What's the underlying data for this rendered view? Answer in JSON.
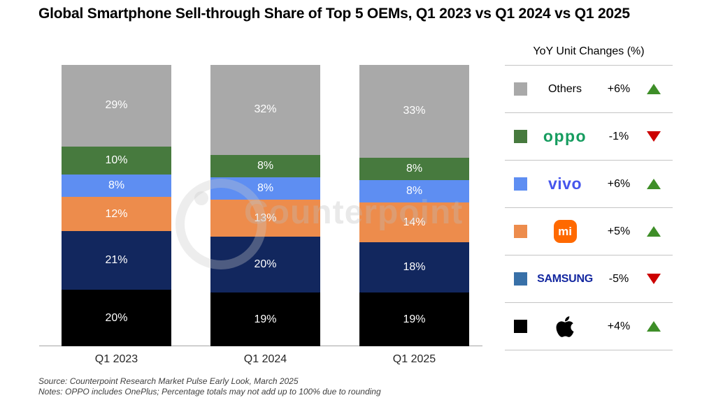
{
  "title": "Global Smartphone Sell-through Share of Top 5 OEMs, Q1 2023 vs Q1 2024 vs Q1 2025",
  "watermark": "Counterpoint",
  "chart_data": {
    "type": "bar",
    "stacked": true,
    "title": "Global Smartphone Sell-through Share of Top 5 OEMs, Q1 2023 vs Q1 2024 vs Q1 2025",
    "categories": [
      "Q1 2023",
      "Q1 2024",
      "Q1 2025"
    ],
    "series": [
      {
        "name": "Apple",
        "color": "#000000",
        "values": [
          20,
          19,
          19
        ]
      },
      {
        "name": "Samsung",
        "color": "#12275E",
        "values": [
          21,
          20,
          18
        ]
      },
      {
        "name": "Xiaomi",
        "color": "#ED8C4C",
        "values": [
          12,
          13,
          14
        ]
      },
      {
        "name": "vivo",
        "color": "#5E8EF2",
        "values": [
          8,
          8,
          8
        ]
      },
      {
        "name": "OPPO",
        "color": "#477A3E",
        "values": [
          10,
          8,
          8
        ]
      },
      {
        "name": "Others",
        "color": "#A9A9A9",
        "values": [
          29,
          32,
          33
        ]
      }
    ],
    "value_label_format": "{v}%",
    "xlabel": "",
    "ylabel": "",
    "ylim": [
      0,
      100
    ],
    "grid": false,
    "legend_position": "right",
    "value_labels": "inside"
  },
  "legend": {
    "header": "YoY Unit Changes (%)",
    "up_color": "#3E8E28",
    "down_color": "#CC0000",
    "rows": [
      {
        "label": "Others",
        "swatch": "#A9A9A9",
        "change": "+6%",
        "direction": "up"
      },
      {
        "label": "OPPO",
        "logo_text": "oppo",
        "logo_color": "#169C5F",
        "swatch": "#477A3E",
        "change": "-1%",
        "direction": "down"
      },
      {
        "label": "vivo",
        "logo_text": "vivo",
        "logo_color": "#4656EC",
        "swatch": "#5E8EF2",
        "change": "+6%",
        "direction": "up"
      },
      {
        "label": "Xiaomi",
        "logo_text": "mi",
        "logo_color": "#FF6900",
        "swatch": "#ED8C4C",
        "change": "+5%",
        "direction": "up"
      },
      {
        "label": "Samsung",
        "logo_text": "SAMSUNG",
        "logo_color": "#1428A0",
        "swatch": "#3870A8",
        "change": "-5%",
        "direction": "down"
      },
      {
        "label": "Apple",
        "swatch": "#000000",
        "change": "+4%",
        "direction": "up"
      }
    ]
  },
  "footer": {
    "source": "Source: Counterpoint Research Market Pulse Early Look, March 2025",
    "notes": "Notes: OPPO includes OnePlus; Percentage totals may not add up to 100% due to rounding"
  }
}
